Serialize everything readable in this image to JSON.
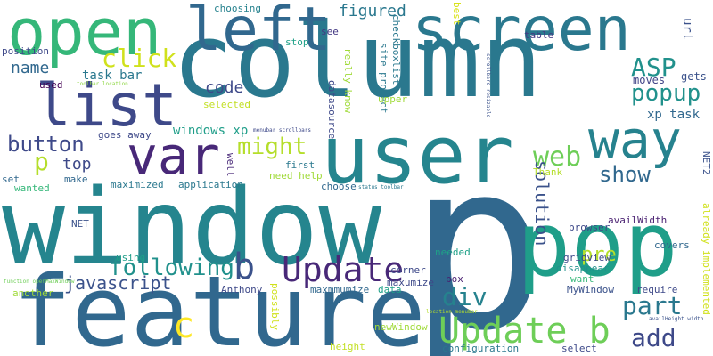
{
  "words": [
    {
      "text": "column",
      "color": "#2a788e"
    },
    {
      "text": "p",
      "color": "#31688e"
    },
    {
      "text": "window",
      "color": "#25858e"
    },
    {
      "text": "feature",
      "color": "#31688e"
    },
    {
      "text": "user",
      "color": "#25858e"
    },
    {
      "text": "pop",
      "color": "#1f9e89"
    },
    {
      "text": "screen",
      "color": "#2a788e"
    },
    {
      "text": "open",
      "color": "#35b779"
    },
    {
      "text": "list",
      "color": "#3e4989"
    },
    {
      "text": "var",
      "color": "#482878"
    },
    {
      "text": "left",
      "color": "#31688e"
    },
    {
      "text": "way",
      "color": "#26828e"
    },
    {
      "text": "Update b",
      "color": "#6ece58"
    },
    {
      "text": "Update",
      "color": "#482878"
    },
    {
      "text": "b",
      "color": "#3b528b"
    },
    {
      "text": "following",
      "color": "#21918c"
    },
    {
      "text": "button",
      "color": "#3e4989"
    },
    {
      "text": "popup",
      "color": "#21918c"
    },
    {
      "text": "ASP",
      "color": "#21918c"
    },
    {
      "text": "click",
      "color": "#d0e11c"
    },
    {
      "text": "might",
      "color": "#b5de2b"
    },
    {
      "text": "web",
      "color": "#6ece58"
    },
    {
      "text": "p",
      "color": "#b5de2b"
    },
    {
      "text": "solution",
      "color": "#3b528b"
    },
    {
      "text": "javascript",
      "color": "#3b528b"
    },
    {
      "text": "div",
      "color": "#26828e"
    },
    {
      "text": "part",
      "color": "#2a788e"
    },
    {
      "text": "add",
      "color": "#3e4989"
    },
    {
      "text": "show",
      "color": "#31688e"
    },
    {
      "text": "pre",
      "color": "#b5de2b"
    },
    {
      "text": "c",
      "color": "#fde725"
    },
    {
      "text": "figured",
      "color": "#2a788e"
    },
    {
      "text": "name",
      "color": "#31688e"
    },
    {
      "text": "top",
      "color": "#3e4989"
    },
    {
      "text": "code",
      "color": "#3e4989"
    },
    {
      "text": "task bar",
      "color": "#2a788e"
    },
    {
      "text": "windows xp",
      "color": "#1f9e89"
    },
    {
      "text": "xp task",
      "color": "#31688e"
    },
    {
      "text": "url",
      "color": "#3b528b"
    },
    {
      "text": "gets",
      "color": "#3b528b"
    },
    {
      "text": "moves",
      "color": "#414487"
    },
    {
      "text": "best",
      "color": "#d8e219"
    },
    {
      "text": "table",
      "color": "#443983"
    },
    {
      "text": "choosing",
      "color": "#26828e"
    },
    {
      "text": "stop",
      "color": "#1fa188"
    },
    {
      "text": "see",
      "color": "#443983"
    },
    {
      "text": "site project",
      "color": "#2a788e"
    },
    {
      "text": "checkboxlist",
      "color": "#2a788e"
    },
    {
      "text": "really know",
      "color": "#a0da39"
    },
    {
      "text": "upper",
      "color": "#a0da39"
    },
    {
      "text": "datasource",
      "color": "#3e4989"
    },
    {
      "text": "position",
      "color": "#3e4989"
    },
    {
      "text": "used",
      "color": "#440154"
    },
    {
      "text": "toolbar location",
      "color": "#8fd744"
    },
    {
      "text": "selected",
      "color": "#c2df23"
    },
    {
      "text": "scrollbars resizable",
      "color": "#3b528b"
    },
    {
      "text": "menubar scrollbars",
      "color": "#3e4989"
    },
    {
      "text": "goes away",
      "color": "#3e4989"
    },
    {
      "text": "maximized",
      "color": "#2a788e"
    },
    {
      "text": "application",
      "color": "#2a788e"
    },
    {
      "text": "need help",
      "color": "#a0da39"
    },
    {
      "text": "first",
      "color": "#2a788e"
    },
    {
      "text": "well",
      "color": "#482878"
    },
    {
      "text": "choose",
      "color": "#31688e"
    },
    {
      "text": "status toolbar",
      "color": "#2a788e"
    },
    {
      "text": "Thank",
      "color": "#b5de2b"
    },
    {
      "text": "NET2",
      "color": "#3b528b"
    },
    {
      "text": "set",
      "color": "#31688e"
    },
    {
      "text": "wanted",
      "color": "#35b779"
    },
    {
      "text": "make",
      "color": "#31688e"
    },
    {
      "text": "NET",
      "color": "#3b528b"
    },
    {
      "text": "using",
      "color": "#1f9e89"
    },
    {
      "text": "browser",
      "color": "#3e4989"
    },
    {
      "text": "availWidth",
      "color": "#481f70"
    },
    {
      "text": "needed",
      "color": "#1fa188"
    },
    {
      "text": "covers",
      "color": "#31688e"
    },
    {
      "text": "box",
      "color": "#481f70"
    },
    {
      "text": "gridview",
      "color": "#3e4989"
    },
    {
      "text": "disappear",
      "color": "#21918c"
    },
    {
      "text": "want",
      "color": "#35b779"
    },
    {
      "text": "MyWindow",
      "color": "#3b528b"
    },
    {
      "text": "require",
      "color": "#3e4989"
    },
    {
      "text": "already implemented",
      "color": "#d0e11c"
    },
    {
      "text": "availHeight width",
      "color": "#3b528b"
    },
    {
      "text": "function openMaxWindow",
      "color": "#6ece58"
    },
    {
      "text": "another",
      "color": "#a0da39"
    },
    {
      "text": "Anthony",
      "color": "#3e4989"
    },
    {
      "text": "possibly",
      "color": "#d0e11c"
    },
    {
      "text": "maxmmumize",
      "color": "#31688e"
    },
    {
      "text": "corner",
      "color": "#3e4989"
    },
    {
      "text": "maxumize",
      "color": "#3e4989"
    },
    {
      "text": "data",
      "color": "#1fa188"
    },
    {
      "text": "location menubar",
      "color": "#b5de2b"
    },
    {
      "text": "newWindow",
      "color": "#a0da39"
    },
    {
      "text": "height",
      "color": "#c2df23"
    },
    {
      "text": "configuration",
      "color": "#2a788e"
    },
    {
      "text": "select",
      "color": "#3e4989"
    }
  ]
}
